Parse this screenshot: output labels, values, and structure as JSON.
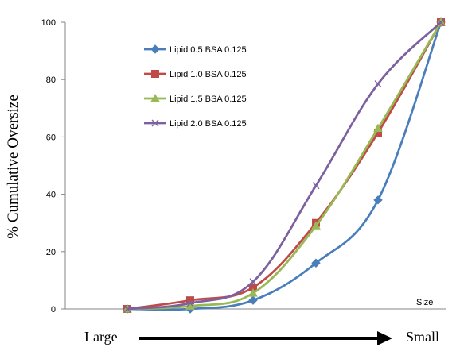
{
  "chart_data": {
    "type": "line",
    "title": "",
    "ylabel": "% Cumulative Oversize",
    "xlabel": "Size",
    "ylim": [
      0,
      100
    ],
    "yticks": [
      0,
      20,
      40,
      60,
      80,
      100
    ],
    "grid": false,
    "legend_placement": "top-left",
    "x": [
      1,
      2,
      3,
      4,
      5,
      6
    ],
    "series": [
      {
        "name": "Lipid 0.5 BSA 0.125",
        "color": "#4A7EBB",
        "marker": "diamond",
        "values": [
          0,
          0,
          3,
          16,
          38,
          100
        ]
      },
      {
        "name": "Lipid 1.0 BSA 0.125",
        "color": "#BE4B48",
        "marker": "square",
        "values": [
          0,
          3,
          7.5,
          30,
          61.5,
          100
        ]
      },
      {
        "name": "Lipid 1.5 BSA 0.125",
        "color": "#98B954",
        "marker": "triangle",
        "values": [
          0,
          1,
          5.5,
          29,
          63,
          100
        ]
      },
      {
        "name": "Lipid 2.0 BSA 0.125",
        "color": "#7D60A0",
        "marker": "x",
        "values": [
          0,
          2,
          9.5,
          43,
          78.5,
          100
        ]
      }
    ]
  },
  "arrow": {
    "left_label": "Large",
    "right_label": "Small"
  }
}
